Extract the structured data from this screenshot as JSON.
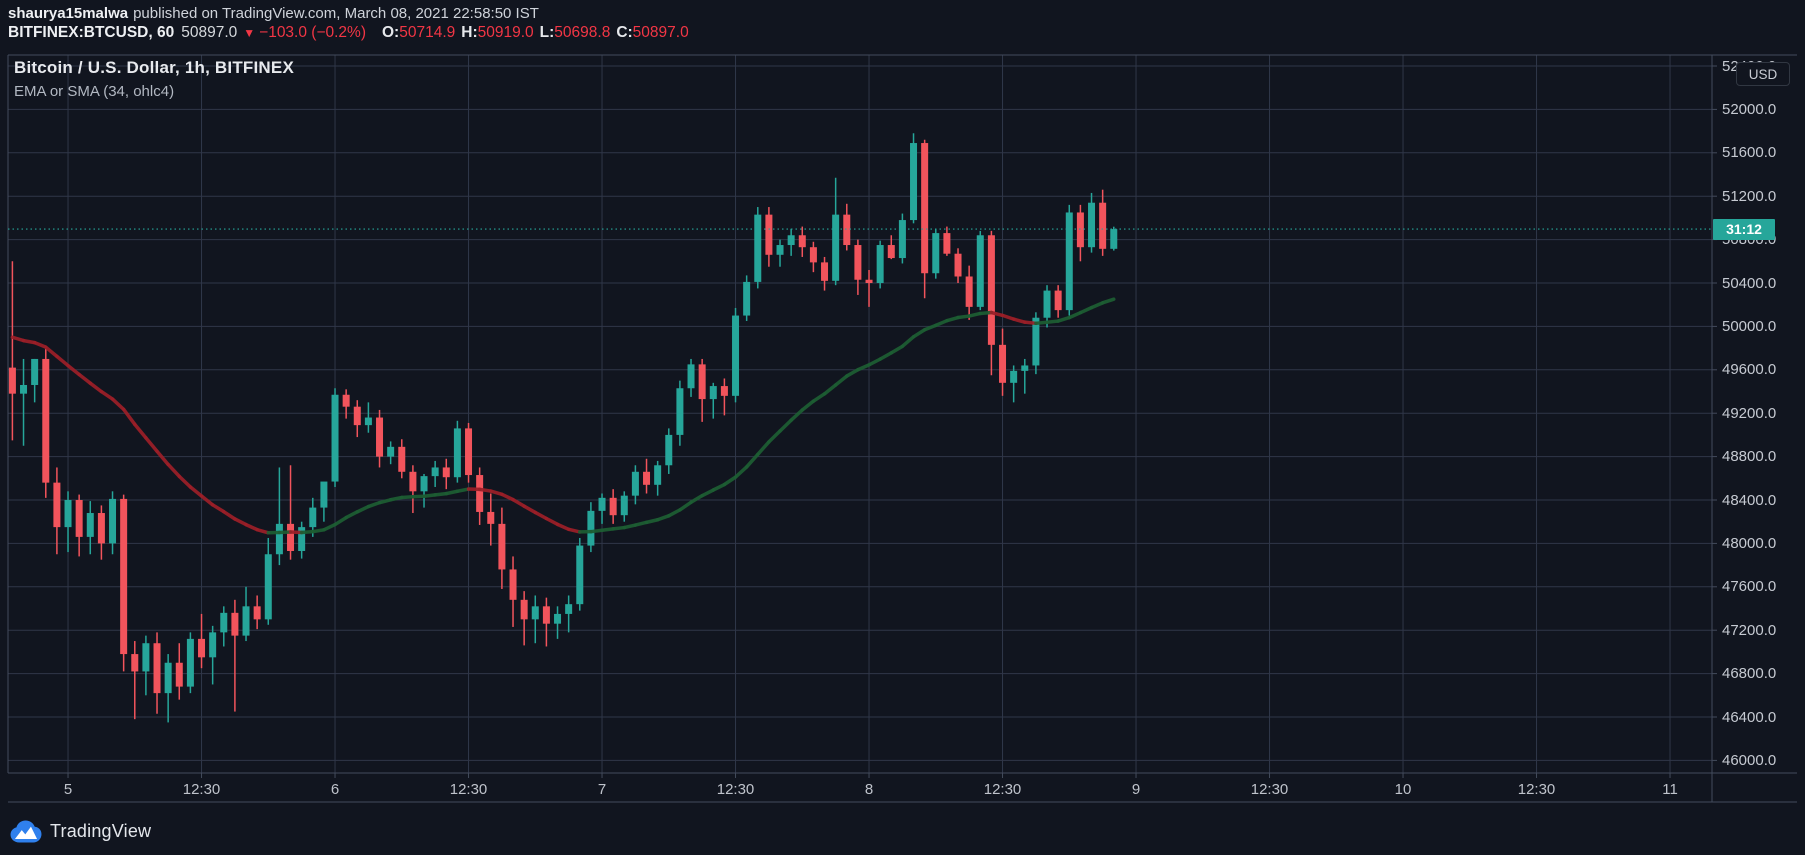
{
  "header": {
    "author": "shaurya15malwa",
    "published_suffix": "published on TradingView.com, March 08, 2021 22:58:50 IST"
  },
  "symbol_bar": {
    "symbol": "BITFINEX:BTCUSD, 60",
    "last": "50897.0",
    "direction_glyph": "▼",
    "change": "−103.0 (−0.2%)",
    "ohlc": [
      {
        "label": "O:",
        "value": "50714.9"
      },
      {
        "label": "H:",
        "value": "50919.0"
      },
      {
        "label": "L:",
        "value": "50698.8"
      },
      {
        "label": "C:",
        "value": "50897.0"
      }
    ]
  },
  "chart": {
    "title": "Bitcoin / U.S. Dollar, 1h, BITFINEX",
    "legend": "EMA or SMA (34, ohlc4)",
    "countdown": "31:12",
    "currency_button": "USD",
    "watermark": "TradingView"
  },
  "chart_data": {
    "type": "candlestick",
    "symbol": "BITFINEX:BTCUSD",
    "interval": "60",
    "last_price": 50897.0,
    "price_axis": {
      "min": 46000,
      "max": 52400,
      "step": 400,
      "labels": [
        "52400.0",
        "52000.0",
        "51600.0",
        "51200.0",
        "50800.0",
        "50400.0",
        "50000.0",
        "49600.0",
        "49200.0",
        "48800.0",
        "48400.0",
        "48000.0",
        "47600.0",
        "47200.0",
        "46800.0",
        "46400.0",
        "46000.0"
      ]
    },
    "time_axis": {
      "ticks": [
        {
          "label": "5",
          "bar": 5
        },
        {
          "label": "12:30",
          "bar": 17
        },
        {
          "label": "6",
          "bar": 29
        },
        {
          "label": "12:30",
          "bar": 41
        },
        {
          "label": "7",
          "bar": 53
        },
        {
          "label": "12:30",
          "bar": 65
        },
        {
          "label": "8",
          "bar": 77
        },
        {
          "label": "12:30",
          "bar": 89
        },
        {
          "label": "9",
          "bar": 101
        },
        {
          "label": "12:30",
          "bar": 113
        },
        {
          "label": "10",
          "bar": 125
        },
        {
          "label": "12:30",
          "bar": 137
        },
        {
          "label": "11",
          "bar": 149
        }
      ]
    },
    "ma": {
      "name": "EMA or SMA",
      "length": 34,
      "source": "ohlc4",
      "seed": 49900,
      "color_up": "#1d5e33",
      "color_down": "#9c1f28"
    },
    "colors": {
      "up": "#26a69a",
      "down": "#f2545c",
      "grid": "#303749",
      "frame": "#434b5c",
      "accent": "#26a69a",
      "neg_text": "#f23645",
      "background": "#11151f"
    },
    "candles": [
      [
        49620,
        50600,
        48950,
        49380
      ],
      [
        49380,
        49700,
        48900,
        49460
      ],
      [
        49460,
        49700,
        49300,
        49700
      ],
      [
        49700,
        49790,
        48420,
        48560
      ],
      [
        48560,
        48700,
        47900,
        48150
      ],
      [
        48150,
        48480,
        47920,
        48400
      ],
      [
        48400,
        48450,
        47880,
        48060
      ],
      [
        48060,
        48390,
        47900,
        48280
      ],
      [
        48280,
        48350,
        47850,
        48000
      ],
      [
        48000,
        48480,
        47900,
        48410
      ],
      [
        48410,
        48450,
        46820,
        46980
      ],
      [
        46980,
        47100,
        46380,
        46820
      ],
      [
        46820,
        47150,
        46600,
        47080
      ],
      [
        47080,
        47180,
        46430,
        46620
      ],
      [
        46620,
        46980,
        46350,
        46900
      ],
      [
        46900,
        47080,
        46560,
        46680
      ],
      [
        46680,
        47180,
        46620,
        47120
      ],
      [
        47120,
        47350,
        46850,
        46950
      ],
      [
        46950,
        47240,
        46700,
        47180
      ],
      [
        47180,
        47420,
        47050,
        47360
      ],
      [
        47360,
        47480,
        46450,
        47150
      ],
      [
        47150,
        47600,
        47100,
        47420
      ],
      [
        47420,
        47520,
        47210,
        47300
      ],
      [
        47300,
        48050,
        47250,
        47900
      ],
      [
        47900,
        48700,
        47800,
        48180
      ],
      [
        48180,
        48720,
        47850,
        47930
      ],
      [
        47930,
        48200,
        47860,
        48150
      ],
      [
        48150,
        48420,
        48060,
        48330
      ],
      [
        48330,
        48480,
        48200,
        48570
      ],
      [
        48570,
        49430,
        48520,
        49370
      ],
      [
        49370,
        49420,
        49150,
        49260
      ],
      [
        49260,
        49320,
        48980,
        49090
      ],
      [
        49090,
        49300,
        49020,
        49160
      ],
      [
        49160,
        49230,
        48700,
        48800
      ],
      [
        48800,
        48940,
        48730,
        48890
      ],
      [
        48890,
        48960,
        48600,
        48660
      ],
      [
        48660,
        48720,
        48280,
        48480
      ],
      [
        48480,
        48640,
        48330,
        48620
      ],
      [
        48620,
        48760,
        48520,
        48700
      ],
      [
        48700,
        48780,
        48500,
        48610
      ],
      [
        48610,
        49130,
        48560,
        49060
      ],
      [
        49060,
        49110,
        48560,
        48630
      ],
      [
        48630,
        48700,
        48170,
        48290
      ],
      [
        48290,
        48460,
        47980,
        48180
      ],
      [
        48180,
        48330,
        47580,
        47760
      ],
      [
        47760,
        47880,
        47230,
        47480
      ],
      [
        47480,
        47560,
        47060,
        47300
      ],
      [
        47300,
        47520,
        47080,
        47420
      ],
      [
        47420,
        47500,
        47050,
        47260
      ],
      [
        47260,
        47420,
        47120,
        47350
      ],
      [
        47350,
        47520,
        47180,
        47440
      ],
      [
        47440,
        48050,
        47380,
        47980
      ],
      [
        47980,
        48380,
        47920,
        48300
      ],
      [
        48300,
        48460,
        48180,
        48420
      ],
      [
        48420,
        48500,
        48180,
        48260
      ],
      [
        48260,
        48480,
        48200,
        48440
      ],
      [
        48440,
        48720,
        48360,
        48660
      ],
      [
        48660,
        48780,
        48460,
        48540
      ],
      [
        48540,
        48760,
        48440,
        48720
      ],
      [
        48720,
        49060,
        48640,
        49000
      ],
      [
        49000,
        49500,
        48900,
        49430
      ],
      [
        49430,
        49700,
        49350,
        49650
      ],
      [
        49650,
        49700,
        49120,
        49330
      ],
      [
        49330,
        49480,
        49150,
        49450
      ],
      [
        49450,
        49520,
        49180,
        49360
      ],
      [
        49360,
        50170,
        49300,
        50100
      ],
      [
        50100,
        50470,
        50050,
        50410
      ],
      [
        50410,
        51100,
        50350,
        51030
      ],
      [
        51030,
        51100,
        50550,
        50660
      ],
      [
        50660,
        50800,
        50550,
        50750
      ],
      [
        50750,
        50900,
        50650,
        50840
      ],
      [
        50840,
        50920,
        50640,
        50730
      ],
      [
        50730,
        50780,
        50500,
        50590
      ],
      [
        50590,
        50640,
        50330,
        50420
      ],
      [
        50420,
        51370,
        50380,
        51030
      ],
      [
        51030,
        51130,
        50700,
        50750
      ],
      [
        50750,
        50800,
        50290,
        50430
      ],
      [
        50430,
        50520,
        50180,
        50400
      ],
      [
        50400,
        50790,
        50350,
        50750
      ],
      [
        50750,
        50840,
        50620,
        50630
      ],
      [
        50630,
        51040,
        50580,
        50980
      ],
      [
        50980,
        51780,
        50950,
        51690
      ],
      [
        51690,
        51720,
        50260,
        50490
      ],
      [
        50490,
        50900,
        50440,
        50860
      ],
      [
        50860,
        50920,
        50650,
        50670
      ],
      [
        50670,
        50720,
        50400,
        50460
      ],
      [
        50460,
        50560,
        50060,
        50180
      ],
      [
        50180,
        50880,
        50150,
        50840
      ],
      [
        50840,
        50880,
        49550,
        49830
      ],
      [
        49830,
        49980,
        49360,
        49480
      ],
      [
        49480,
        49640,
        49300,
        49590
      ],
      [
        49590,
        49700,
        49380,
        49640
      ],
      [
        49640,
        50130,
        49560,
        50080
      ],
      [
        50080,
        50380,
        49990,
        50330
      ],
      [
        50330,
        50380,
        50080,
        50150
      ],
      [
        50150,
        51120,
        50100,
        51050
      ],
      [
        51050,
        51120,
        50600,
        50730
      ],
      [
        50730,
        51230,
        50680,
        51140
      ],
      [
        51140,
        51260,
        50650,
        50715
      ],
      [
        50715,
        50919,
        50699,
        50897
      ]
    ]
  }
}
